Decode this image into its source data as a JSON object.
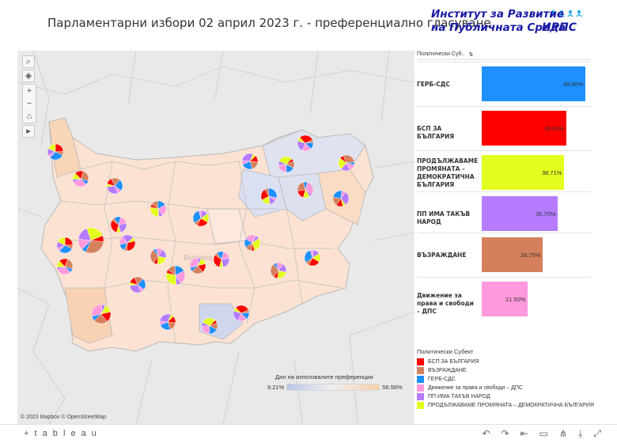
{
  "header": {
    "title": "Парламентарни избори 02 април 2023 г. - преференциално гласуване",
    "logo_line1": "Институт за Развитие",
    "logo_line2": "на Публичната Среда",
    "logo_mark": "ИРПС"
  },
  "map": {
    "tools": [
      "search-icon",
      "select-icon",
      "zoom-in-icon",
      "zoom-out-icon",
      "home-icon",
      "pan-arrow-icon"
    ],
    "faint_label": "Bulgaria",
    "scale_legend": {
      "title": "Дял на използвалите преференции",
      "min": "9.21%",
      "max": "56.56%"
    },
    "attribution": "© 2023 Mapbox  © OpenStreetMap"
  },
  "bars_panel": {
    "header": "Политически Суб..",
    "items": [
      {
        "label": "ГЕРБ-СДС",
        "value": 48.96,
        "value_text": "48.96%",
        "color": "#1e90ff"
      },
      {
        "label": "БСП ЗА БЪЛГАРИЯ",
        "value": 39.83,
        "value_text": "39.83%",
        "color": "#ff0000"
      },
      {
        "label": "ПРОДЪЛЖАВАМЕ ПРОМЯНАТА – ДЕМОКРАТИЧНА БЪЛГАРИЯ",
        "value": 38.71,
        "value_text": "38.71%",
        "color": "#e3ff1f"
      },
      {
        "label": "ПП ИМА ТАКЪВ НАРОД",
        "value": 35.7,
        "value_text": "35.70%",
        "color": "#b57cff"
      },
      {
        "label": "ВЪЗРАЖДАНЕ",
        "value": 28.75,
        "value_text": "28.75%",
        "color": "#d5805d"
      },
      {
        "label": "Движение за права и свободи – ДПС",
        "value": 21.5,
        "value_text": "21.50%",
        "color": "#ff99dd"
      }
    ]
  },
  "legend": {
    "title": "Политически Субект",
    "items": [
      {
        "label": "БСП ЗА БЪЛГАРИЯ",
        "color": "#ff0000"
      },
      {
        "label": "ВЪЗРАЖДАНЕ",
        "color": "#d5805d"
      },
      {
        "label": "ГЕРБ-СДС",
        "color": "#1e90ff"
      },
      {
        "label": "Движение за права и свободи – ДПС",
        "color": "#ff99dd"
      },
      {
        "label": "ПП ИМА ТАКЪВ НАРОД",
        "color": "#b57cff"
      },
      {
        "label": "ПРОДЪЛЖАВАМЕ ПРОМЯНАТА – ДЕМОКРАТИЧНА БЪЛГАРИЯ",
        "color": "#e3ff1f"
      }
    ]
  },
  "footer": {
    "brand": "+ t a b l e a u",
    "icons": [
      "undo-icon",
      "redo-icon",
      "revert-icon",
      "pause-icon",
      "share-icon",
      "download-icon",
      "fullscreen-icon"
    ]
  }
}
